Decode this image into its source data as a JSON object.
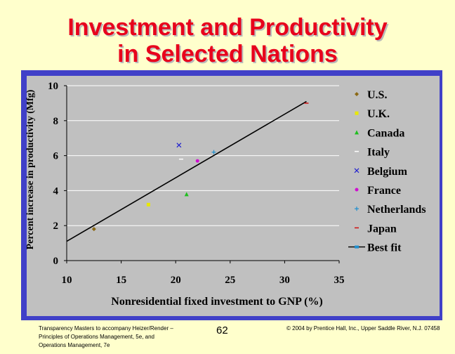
{
  "slide": {
    "title_line_1": "Investment and Productivity",
    "title_line_2": "in Selected Nations",
    "footer_left": "Transparency Masters to accompany Heizer/Render – Principles of Operations Management, 5e, and Operations Management, 7e",
    "page_number": "62",
    "footer_right": "© 2004 by Prentice Hall, Inc., Upper Saddle River, N.J. 07458",
    "colors": {
      "title": "#e8001c",
      "background": "#ffffcc",
      "frame": "#4040c8",
      "plot": "#c0c0c0"
    }
  },
  "chart_data": {
    "type": "scatter",
    "title": "",
    "xlabel": "Nonresidential fixed investment to GNP (%)",
    "ylabel": "Percent increase in productivity (Mfg)",
    "xlim": [
      10,
      35
    ],
    "ylim": [
      0,
      10
    ],
    "xticks": [
      "10",
      "15",
      "20",
      "25",
      "30",
      "35"
    ],
    "yticks": [
      "0",
      "2",
      "4",
      "6",
      "8",
      "10"
    ],
    "grid": "horizontal",
    "legend_position": "right",
    "series": [
      {
        "name": "U.S.",
        "x": 12.5,
        "y": 1.8,
        "marker": "diamond",
        "color": "#8b6914"
      },
      {
        "name": "U.K.",
        "x": 17.5,
        "y": 3.2,
        "marker": "square",
        "color": "#e8e800"
      },
      {
        "name": "Canada",
        "x": 21,
        "y": 3.8,
        "marker": "triangle",
        "color": "#1fbf1f"
      },
      {
        "name": "Italy",
        "x": 20.5,
        "y": 5.8,
        "marker": "dash",
        "color": "#ffffff"
      },
      {
        "name": "Belgium",
        "x": 20.3,
        "y": 6.6,
        "marker": "x",
        "color": "#1f1fcf"
      },
      {
        "name": "France",
        "x": 22,
        "y": 5.7,
        "marker": "circle",
        "color": "#d010d0"
      },
      {
        "name": "Netherlands",
        "x": 23.5,
        "y": 6.2,
        "marker": "plus",
        "color": "#1f8fcf"
      },
      {
        "name": "Japan",
        "x": 32,
        "y": 9.0,
        "marker": "dash",
        "color": "#d01010"
      }
    ],
    "best_fit": {
      "name": "Best fit",
      "x": [
        10,
        32
      ],
      "y": [
        1.1,
        9.1
      ],
      "color": "#000000"
    }
  }
}
